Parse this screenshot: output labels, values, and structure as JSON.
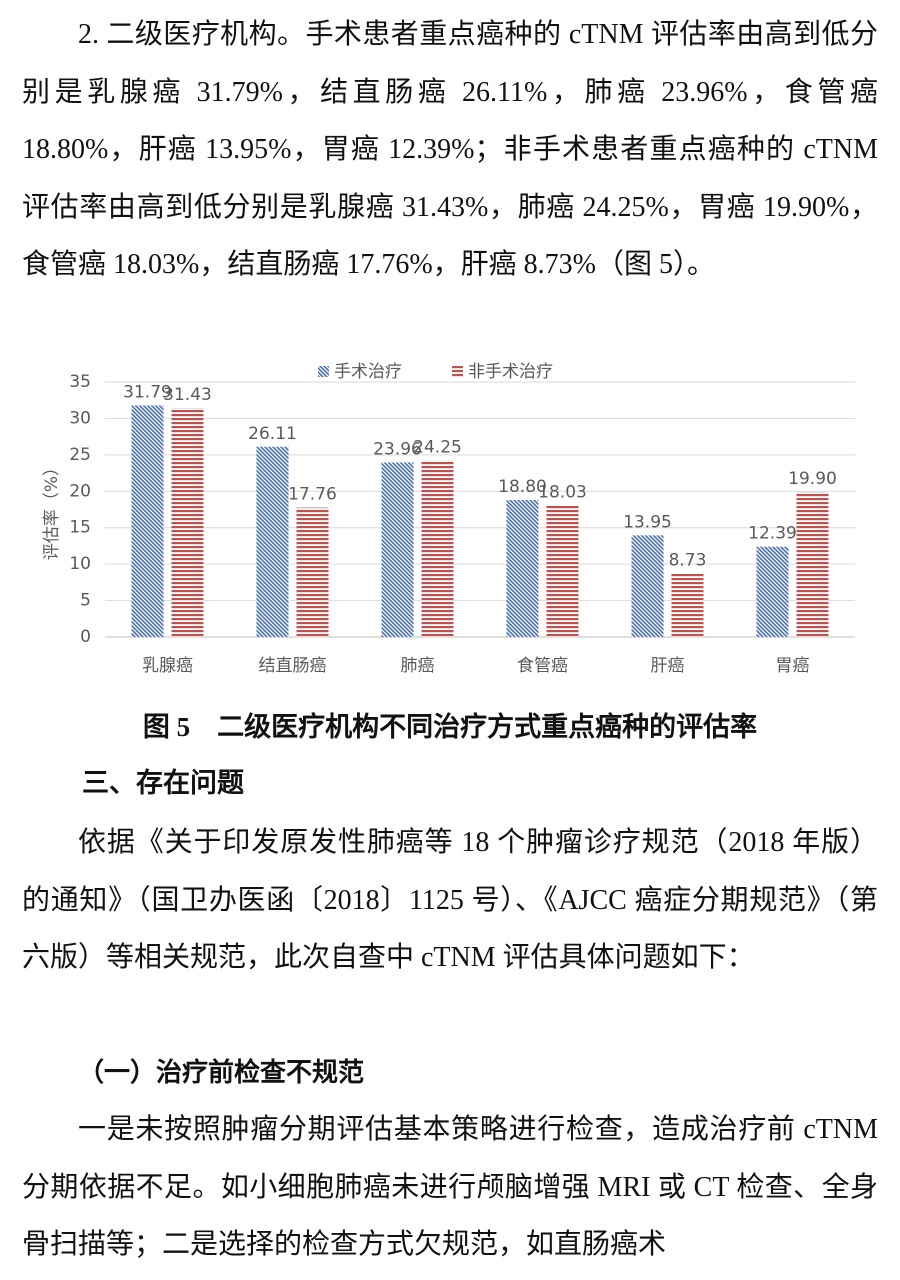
{
  "paragraph_1": "2. 二级医疗机构。手术患者重点癌种的 cTNM 评估率由高到低分别是乳腺癌 31.79%，结直肠癌 26.11%，肺癌 23.96%，食管癌 18.80%，肝癌 13.95%，胃癌 12.39%；非手术患者重点癌种的 cTNM 评估率由高到低分别是乳腺癌 31.43%，肺癌 24.25%，胃癌 19.90%，食管癌 18.03%，结直肠癌 17.76%，肝癌 8.73%（图 5）。",
  "chart_data": {
    "type": "bar",
    "y_label": "评估率（%）",
    "categories": [
      "乳腺癌",
      "结直肠癌",
      "肺癌",
      "食管癌",
      "肝癌",
      "胃癌"
    ],
    "series": [
      {
        "name": "手术治疗",
        "color": "#4a6fb5",
        "values": [
          31.79,
          26.11,
          23.96,
          18.8,
          13.95,
          12.39
        ],
        "value_labels": [
          "31.79",
          "26.11",
          "23.96",
          "18.80",
          "13.95",
          "12.39"
        ]
      },
      {
        "name": "非手术治疗",
        "color": "#c0504d",
        "values": [
          31.43,
          17.76,
          24.25,
          18.03,
          8.73,
          19.9
        ],
        "value_labels": [
          "31.43",
          "17.76",
          "24.25",
          "18.03",
          "8.73",
          "19.90"
        ]
      }
    ],
    "ylim": [
      0,
      35
    ],
    "yticks": [
      0,
      5,
      10,
      15,
      20,
      25,
      30,
      35
    ],
    "grid": true,
    "legend": "top"
  },
  "caption": "图 5　二级医疗机构不同治疗方式重点癌种的评估率",
  "heading": "三、存在问题",
  "paragraph_2": "依据《关于印发原发性肺癌等 18 个肿瘤诊疗规范（2018 年版）的通知》（国卫办医函〔2018〕1125 号）、《AJCC 癌症分期规范》（第六版）等相关规范，此次自查中 cTNM 评估具体问题如下：",
  "subheading": "（一）治疗前检查不规范",
  "paragraph_3": "一是未按照肿瘤分期评估基本策略进行检查，造成治疗前 cTNM 分期依据不足。如小细胞肺癌未进行颅脑增强 MRI 或 CT 检查、全身骨扫描等；二是选择的检查方式欠规范，如直肠癌术"
}
